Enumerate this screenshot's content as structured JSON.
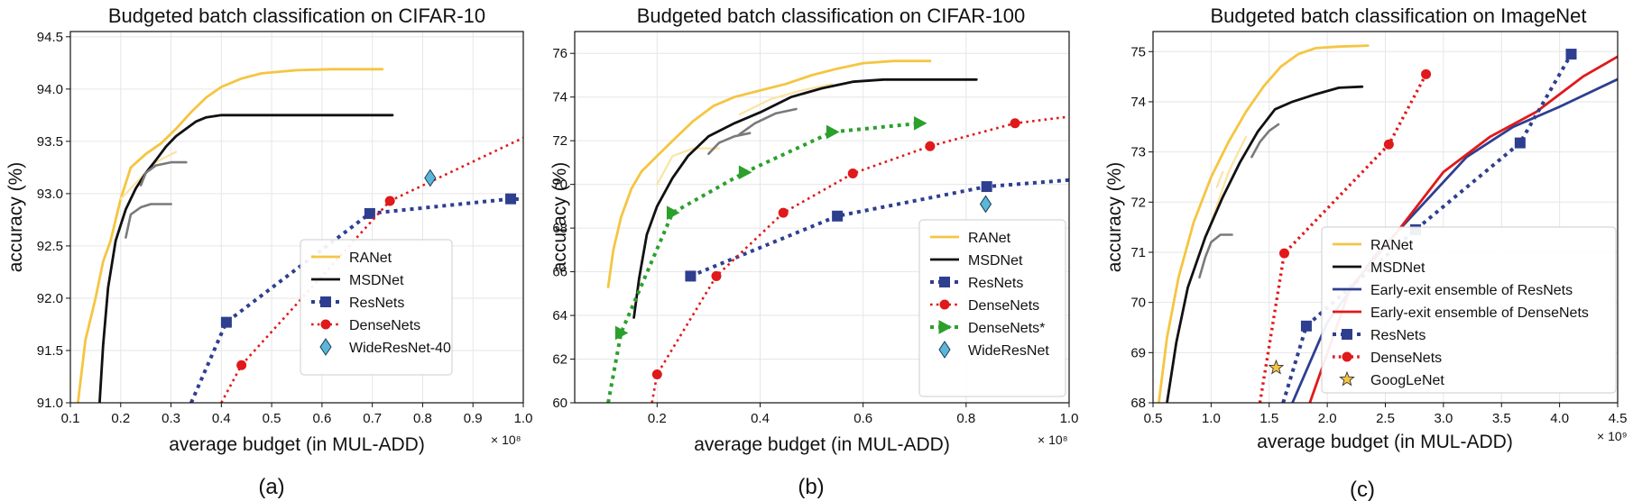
{
  "chart_data": [
    {
      "type": "line",
      "title": "Budgeted batch classification on CIFAR-10",
      "xlabel": "average budget (in MUL-ADD)",
      "ylabel": "accuracy (%)",
      "x_multiplier": "× 10⁸",
      "panel_label": "(a)",
      "xlim": [
        0.1,
        1.0
      ],
      "ylim": [
        91.0,
        94.55
      ],
      "xticks": [
        0.1,
        0.2,
        0.3,
        0.4,
        0.5,
        0.6,
        0.7,
        0.8,
        0.9,
        1.0
      ],
      "xtick_labels": [
        "0.1",
        "0.2",
        "0.3",
        "0.4",
        "0.5",
        "0.6",
        "0.7",
        "0.8",
        "0.9",
        "1.0"
      ],
      "yticks": [
        91.0,
        91.5,
        92.0,
        92.5,
        93.0,
        93.5,
        94.0,
        94.5
      ],
      "ytick_labels": [
        "91.0",
        "91.5",
        "92.0",
        "92.5",
        "93.0",
        "93.5",
        "94.0",
        "94.5"
      ],
      "grid": true,
      "legend_position": "lower-right",
      "series": [
        {
          "name": "RANet",
          "style": "solid",
          "color": "#f5c542",
          "marker": "none",
          "width": 2.8,
          "x": [
            0.115,
            0.13,
            0.15,
            0.165,
            0.18,
            0.2,
            0.22,
            0.25,
            0.28,
            0.31,
            0.34,
            0.37,
            0.4,
            0.44,
            0.48,
            0.55,
            0.62,
            0.69,
            0.72
          ],
          "y": [
            91.0,
            91.6,
            92.0,
            92.35,
            92.55,
            92.95,
            93.25,
            93.38,
            93.48,
            93.62,
            93.78,
            93.92,
            94.02,
            94.1,
            94.15,
            94.18,
            94.19,
            94.19,
            94.19
          ]
        },
        {
          "name": "",
          "style": "solid",
          "color": "#fbe3a3",
          "marker": "none",
          "width": 2.2,
          "x": [
            0.2,
            0.23,
            0.27,
            0.31
          ],
          "y": [
            92.95,
            93.1,
            93.3,
            93.4
          ]
        },
        {
          "name": "MSDNet",
          "style": "solid",
          "color": "#111111",
          "marker": "none",
          "width": 2.8,
          "x": [
            0.158,
            0.165,
            0.175,
            0.19,
            0.21,
            0.23,
            0.25,
            0.27,
            0.29,
            0.31,
            0.33,
            0.35,
            0.37,
            0.4,
            0.45,
            0.55,
            0.65,
            0.74
          ],
          "y": [
            91.0,
            91.55,
            92.1,
            92.55,
            92.85,
            93.05,
            93.2,
            93.32,
            93.45,
            93.55,
            93.62,
            93.69,
            93.73,
            93.75,
            93.75,
            93.75,
            93.75,
            93.75
          ]
        },
        {
          "name": "",
          "style": "solid",
          "color": "#7a7a7a",
          "marker": "none",
          "width": 2.6,
          "x": [
            0.21,
            0.22,
            0.24,
            0.26,
            0.28,
            0.3
          ],
          "y": [
            92.58,
            92.8,
            92.87,
            92.9,
            92.9,
            92.9
          ]
        },
        {
          "name": "",
          "style": "solid",
          "color": "#7a7a7a",
          "marker": "none",
          "width": 2.6,
          "x": [
            0.24,
            0.25,
            0.27,
            0.3,
            0.33
          ],
          "y": [
            93.08,
            93.2,
            93.27,
            93.3,
            93.3
          ]
        },
        {
          "name": "ResNets",
          "style": "dotted",
          "color": "#2e3f8f",
          "marker": "square",
          "width": 4,
          "x": [
            0.34,
            0.41,
            0.695,
            0.975,
            1.02
          ],
          "y": [
            91.0,
            91.77,
            92.81,
            92.95,
            92.94
          ],
          "marked": [
            false,
            true,
            true,
            true,
            false
          ]
        },
        {
          "name": "DenseNets",
          "style": "dotted",
          "color": "#e0191b",
          "marker": "circle",
          "width": 2.6,
          "x": [
            0.4,
            0.44,
            0.735,
            1.02
          ],
          "y": [
            91.0,
            91.36,
            92.93,
            93.58
          ],
          "marked": [
            false,
            true,
            true,
            false
          ]
        },
        {
          "name": "WideResNet-40",
          "style": "none",
          "color": "#5bb6da",
          "marker": "diamond",
          "width": 0,
          "x": [
            0.815
          ],
          "y": [
            93.15
          ],
          "marked": [
            true
          ]
        }
      ],
      "legend": [
        "RANet",
        "MSDNet",
        "ResNets",
        "DenseNets",
        "WideResNet-40"
      ]
    },
    {
      "type": "line",
      "title": "Budgeted batch classification on CIFAR-100",
      "xlabel": "average budget (in MUL-ADD)",
      "ylabel": "accuracy (%)",
      "x_multiplier": "× 10⁸",
      "panel_label": "(b)",
      "xlim": [
        0.04,
        1.0
      ],
      "ylim": [
        60,
        77
      ],
      "xticks": [
        0.2,
        0.4,
        0.6,
        0.8,
        1.0
      ],
      "xtick_labels": [
        "0.2",
        "0.4",
        "0.6",
        "0.8",
        "1.0"
      ],
      "yticks": [
        60,
        62,
        64,
        66,
        68,
        70,
        72,
        74,
        76
      ],
      "ytick_labels": [
        "60",
        "62",
        "64",
        "66",
        "68",
        "70",
        "72",
        "74",
        "76"
      ],
      "grid": true,
      "legend_position": "lower-right",
      "series": [
        {
          "name": "RANet",
          "style": "solid",
          "color": "#f5c542",
          "marker": "none",
          "width": 2.8,
          "x": [
            0.105,
            0.115,
            0.13,
            0.15,
            0.17,
            0.2,
            0.23,
            0.27,
            0.31,
            0.35,
            0.4,
            0.45,
            0.5,
            0.55,
            0.6,
            0.66,
            0.73
          ],
          "y": [
            65.3,
            67.0,
            68.5,
            69.8,
            70.6,
            71.3,
            72.0,
            72.9,
            73.6,
            74.0,
            74.3,
            74.6,
            75.0,
            75.3,
            75.55,
            75.65,
            75.65
          ]
        },
        {
          "name": "",
          "style": "solid",
          "color": "#fbe3a3",
          "marker": "none",
          "width": 2.2,
          "x": [
            0.2,
            0.23,
            0.27,
            0.32
          ],
          "y": [
            70.0,
            71.3,
            71.65,
            71.65
          ]
        },
        {
          "name": "",
          "style": "solid",
          "color": "#fbe3a3",
          "marker": "none",
          "width": 2.2,
          "x": [
            0.36,
            0.42,
            0.48,
            0.54
          ],
          "y": [
            73.2,
            73.9,
            74.3,
            74.6
          ]
        },
        {
          "name": "MSDNet",
          "style": "solid",
          "color": "#111111",
          "marker": "none",
          "width": 2.8,
          "x": [
            0.155,
            0.165,
            0.18,
            0.2,
            0.23,
            0.26,
            0.3,
            0.35,
            0.4,
            0.46,
            0.52,
            0.58,
            0.64,
            0.7,
            0.76,
            0.82
          ],
          "y": [
            63.9,
            65.7,
            67.7,
            69.0,
            70.3,
            71.3,
            72.2,
            72.8,
            73.3,
            74.0,
            74.4,
            74.7,
            74.8,
            74.8,
            74.8,
            74.8
          ]
        },
        {
          "name": "",
          "style": "solid",
          "color": "#7a7a7a",
          "marker": "none",
          "width": 2.6,
          "x": [
            0.3,
            0.32,
            0.35,
            0.38
          ],
          "y": [
            71.4,
            71.9,
            72.2,
            72.35
          ]
        },
        {
          "name": "",
          "style": "solid",
          "color": "#7a7a7a",
          "marker": "none",
          "width": 2.6,
          "x": [
            0.36,
            0.39,
            0.43,
            0.47
          ],
          "y": [
            72.3,
            72.8,
            73.25,
            73.45
          ]
        },
        {
          "name": "ResNets",
          "style": "dotted",
          "color": "#2e3f8f",
          "marker": "square",
          "width": 4,
          "x": [
            0.265,
            0.55,
            0.84,
            1.0
          ],
          "y": [
            65.8,
            68.55,
            69.9,
            70.2
          ],
          "marked": [
            true,
            true,
            true,
            false
          ]
        },
        {
          "name": "DenseNets",
          "style": "dotted",
          "color": "#e0191b",
          "marker": "circle",
          "width": 2.6,
          "x": [
            0.19,
            0.2,
            0.315,
            0.445,
            0.58,
            0.73,
            0.895,
            1.0
          ],
          "y": [
            60.0,
            61.3,
            65.8,
            68.7,
            70.5,
            71.75,
            72.8,
            73.1
          ],
          "marked": [
            false,
            true,
            true,
            true,
            true,
            true,
            true,
            false
          ]
        },
        {
          "name": "DenseNets*",
          "style": "dotted",
          "color": "#2ca02c",
          "marker": "triangle-right",
          "width": 4,
          "x": [
            0.105,
            0.13,
            0.23,
            0.37,
            0.54,
            0.71
          ],
          "y": [
            60.0,
            63.2,
            68.7,
            70.55,
            72.4,
            72.8
          ],
          "marked": [
            false,
            true,
            true,
            true,
            true,
            true
          ]
        },
        {
          "name": "WideResNet",
          "style": "none",
          "color": "#5bb6da",
          "marker": "diamond",
          "width": 0,
          "x": [
            0.838
          ],
          "y": [
            69.1
          ],
          "marked": [
            true
          ]
        }
      ],
      "legend": [
        "RANet",
        "MSDNet",
        "ResNets",
        "DenseNets",
        "DenseNets*",
        "WideResNet"
      ]
    },
    {
      "type": "line",
      "title": "Budgeted batch classification on ImageNet",
      "xlabel": "average budget (in MUL-ADD)",
      "ylabel": "accuracy (%)",
      "x_multiplier": "× 10⁹",
      "panel_label": "(c)",
      "xlim": [
        0.5,
        4.5
      ],
      "ylim": [
        68,
        75.4
      ],
      "xticks": [
        0.5,
        1.0,
        1.5,
        2.0,
        2.5,
        3.0,
        3.5,
        4.0,
        4.5
      ],
      "xtick_labels": [
        "0.5",
        "1.0",
        "1.5",
        "2.0",
        "2.5",
        "3.0",
        "3.5",
        "4.0",
        "4.5"
      ],
      "yticks": [
        68,
        69,
        70,
        71,
        72,
        73,
        74,
        75
      ],
      "ytick_labels": [
        "68",
        "69",
        "70",
        "71",
        "72",
        "73",
        "74",
        "75"
      ],
      "grid": true,
      "legend_position": "center-right",
      "series": [
        {
          "name": "RANet",
          "style": "solid",
          "color": "#f5c542",
          "marker": "none",
          "width": 2.8,
          "x": [
            0.55,
            0.62,
            0.72,
            0.85,
            1.0,
            1.15,
            1.3,
            1.45,
            1.6,
            1.75,
            1.9,
            2.1,
            2.35
          ],
          "y": [
            68.0,
            69.3,
            70.5,
            71.6,
            72.5,
            73.2,
            73.8,
            74.3,
            74.7,
            74.95,
            75.07,
            75.1,
            75.12
          ]
        },
        {
          "name": "",
          "style": "solid",
          "color": "#fbe3a3",
          "marker": "none",
          "width": 2.2,
          "x": [
            1.0,
            1.15,
            1.3
          ],
          "y": [
            71.6,
            72.6,
            73.3
          ]
        },
        {
          "name": "",
          "style": "solid",
          "color": "#fbe3a3",
          "marker": "none",
          "width": 2.2,
          "x": [
            1.05,
            1.1
          ],
          "y": [
            72.3,
            72.6
          ]
        },
        {
          "name": "MSDNet",
          "style": "solid",
          "color": "#111111",
          "marker": "none",
          "width": 2.8,
          "x": [
            0.62,
            0.7,
            0.8,
            0.95,
            1.1,
            1.25,
            1.4,
            1.55,
            1.7,
            1.9,
            2.1,
            2.3
          ],
          "y": [
            68.0,
            69.2,
            70.3,
            71.3,
            72.1,
            72.8,
            73.4,
            73.85,
            74.0,
            74.15,
            74.28,
            74.3
          ]
        },
        {
          "name": "",
          "style": "solid",
          "color": "#7a7a7a",
          "marker": "none",
          "width": 2.6,
          "x": [
            0.9,
            0.95,
            1.0,
            1.08,
            1.18
          ],
          "y": [
            70.5,
            70.9,
            71.2,
            71.35,
            71.35
          ]
        },
        {
          "name": "",
          "style": "solid",
          "color": "#7a7a7a",
          "marker": "none",
          "width": 2.6,
          "x": [
            1.35,
            1.42,
            1.5,
            1.58
          ],
          "y": [
            72.9,
            73.2,
            73.42,
            73.55
          ]
        },
        {
          "name": "Early-exit ensemble of ResNets",
          "style": "solid",
          "color": "#2e3f8f",
          "marker": "none",
          "width": 2.8,
          "x": [
            1.7,
            2.0,
            2.4,
            2.8,
            3.2,
            3.6,
            4.0,
            4.5
          ],
          "y": [
            68.0,
            69.6,
            70.9,
            71.9,
            72.9,
            73.5,
            73.9,
            74.45
          ]
        },
        {
          "name": "Early-exit ensemble of DenseNets",
          "style": "solid",
          "color": "#e0191b",
          "marker": "none",
          "width": 2.8,
          "x": [
            1.85,
            2.2,
            2.6,
            3.0,
            3.4,
            3.8,
            4.2,
            4.5
          ],
          "y": [
            68.0,
            70.3,
            71.4,
            72.6,
            73.3,
            73.8,
            74.5,
            74.9
          ]
        },
        {
          "name": "ResNets",
          "style": "dotted",
          "color": "#2e3f8f",
          "marker": "square",
          "width": 4,
          "x": [
            1.62,
            1.82,
            2.76,
            3.66,
            4.1
          ],
          "y": [
            68.0,
            69.53,
            71.45,
            73.18,
            74.95
          ],
          "marked": [
            false,
            true,
            true,
            true,
            true
          ]
        },
        {
          "name": "DenseNets",
          "style": "dotted",
          "color": "#e0191b",
          "marker": "circle",
          "width": 3.4,
          "x": [
            1.42,
            1.63,
            2.53,
            2.85
          ],
          "y": [
            68.0,
            70.98,
            73.15,
            74.55
          ],
          "marked": [
            false,
            true,
            true,
            true
          ]
        },
        {
          "name": "GoogLeNet",
          "style": "none",
          "color": "#f5c542",
          "marker": "star",
          "width": 0,
          "x": [
            1.56
          ],
          "y": [
            68.7
          ],
          "marked": [
            true
          ]
        }
      ],
      "legend": [
        "RANet",
        "MSDNet",
        "Early-exit ensemble of ResNets",
        "Early-exit ensemble of DenseNets",
        "ResNets",
        "DenseNets",
        "GoogLeNet"
      ]
    }
  ]
}
